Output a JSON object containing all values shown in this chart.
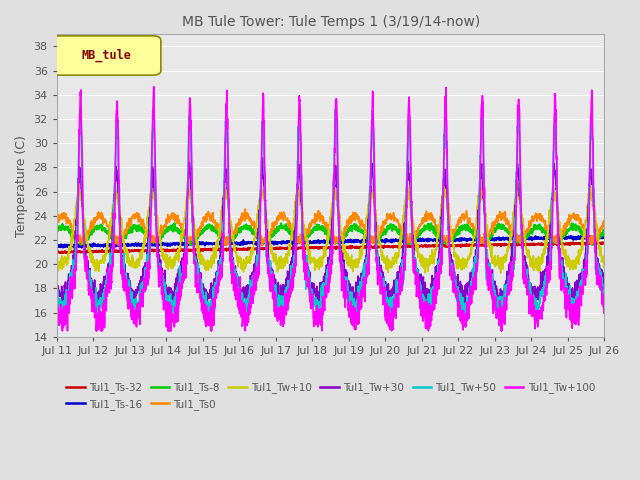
{
  "title": "MB Tule Tower: Tule Temps 1 (3/19/14-now)",
  "ylabel": "Temperature (C)",
  "ylim": [
    14,
    39
  ],
  "yticks": [
    14,
    16,
    18,
    20,
    22,
    24,
    26,
    28,
    30,
    32,
    34,
    36,
    38
  ],
  "xtick_labels": [
    "Jul 11",
    "Jul 12",
    "Jul 13",
    "Jul 14",
    "Jul 15",
    "Jul 16",
    "Jul 17",
    "Jul 18",
    "Jul 19",
    "Jul 20",
    "Jul 21",
    "Jul 22",
    "Jul 23",
    "Jul 24",
    "Jul 25",
    "Jul 26"
  ],
  "legend_label": "MB_tule",
  "series_order": [
    "Tul1_Ts-32",
    "Tul1_Ts-16",
    "Tul1_Ts-8",
    "Tul1_Ts0",
    "Tul1_Tw+10",
    "Tul1_Tw+30",
    "Tul1_Tw+50",
    "Tul1_Tw+100"
  ],
  "series": {
    "Tul1_Ts-32": {
      "color": "#cc0000",
      "lw": 1.5
    },
    "Tul1_Ts-16": {
      "color": "#0000cc",
      "lw": 1.5
    },
    "Tul1_Ts-8": {
      "color": "#00cc00",
      "lw": 1.5
    },
    "Tul1_Ts0": {
      "color": "#ff8800",
      "lw": 1.2
    },
    "Tul1_Tw+10": {
      "color": "#cccc00",
      "lw": 1.2
    },
    "Tul1_Tw+30": {
      "color": "#8800cc",
      "lw": 1.2
    },
    "Tul1_Tw+50": {
      "color": "#00cccc",
      "lw": 1.2
    },
    "Tul1_Tw+100": {
      "color": "#ff00ff",
      "lw": 1.2
    }
  },
  "background_color": "#e0e0e0",
  "plot_bg_color": "#e8e8e8",
  "grid_color": "#ffffff",
  "title_color": "#555555",
  "label_color": "#555555"
}
